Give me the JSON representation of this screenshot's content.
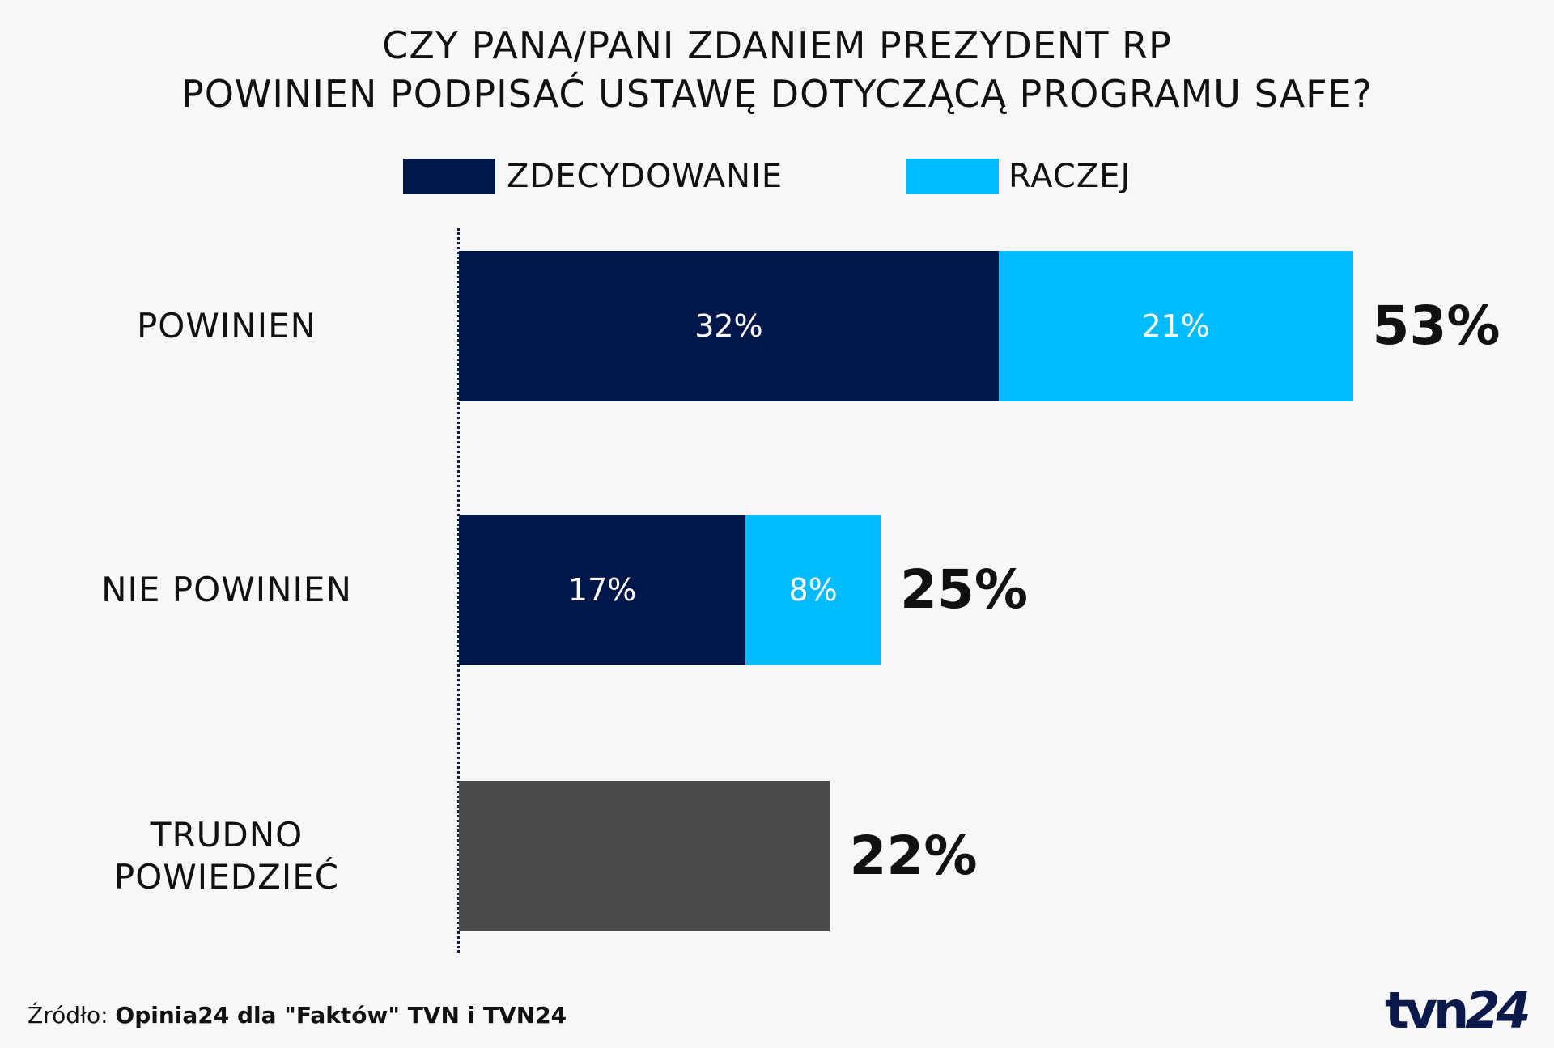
{
  "chart_data": {
    "type": "bar",
    "orientation": "horizontal",
    "stacked": true,
    "title": [
      "CZY PANA/PANI ZDANIEM PREZYDENT RP",
      "POWINIEN PODPISAĆ USTAWĘ DOTYCZĄCĄ PROGRAMU SAFE?"
    ],
    "legend": [
      {
        "name": "ZDECYDOWANIE",
        "color": "#00174a"
      },
      {
        "name": "RACZEJ",
        "color": "#00bbff"
      }
    ],
    "legend_placement": "top",
    "grid": false,
    "categories": [
      {
        "label": [
          "POWINIEN"
        ],
        "segments": [
          {
            "series": "ZDECYDOWANIE",
            "value": 32,
            "label": "32%",
            "color": "#00174a"
          },
          {
            "series": "RACZEJ",
            "value": 21,
            "label": "21%",
            "color": "#00bbff"
          }
        ],
        "total": 53,
        "total_label": "53%"
      },
      {
        "label": [
          "NIE POWINIEN"
        ],
        "segments": [
          {
            "series": "ZDECYDOWANIE",
            "value": 17,
            "label": "17%",
            "color": "#00174a"
          },
          {
            "series": "RACZEJ",
            "value": 8,
            "label": "8%",
            "color": "#00bbff"
          }
        ],
        "total": 25,
        "total_label": "25%"
      },
      {
        "label": [
          "TRUDNO",
          "POWIEDZIEĆ"
        ],
        "segments": [
          {
            "value": 22,
            "label": "",
            "color": "#494a4a"
          }
        ],
        "total": 22,
        "total_label": "22%"
      }
    ],
    "xlim": [
      0,
      100
    ]
  },
  "footer": {
    "source_prefix": "Źródło:",
    "source_text": "Opinia24 dla \"Faktów\" TVN i TVN24",
    "logo_text": "tvn24"
  }
}
